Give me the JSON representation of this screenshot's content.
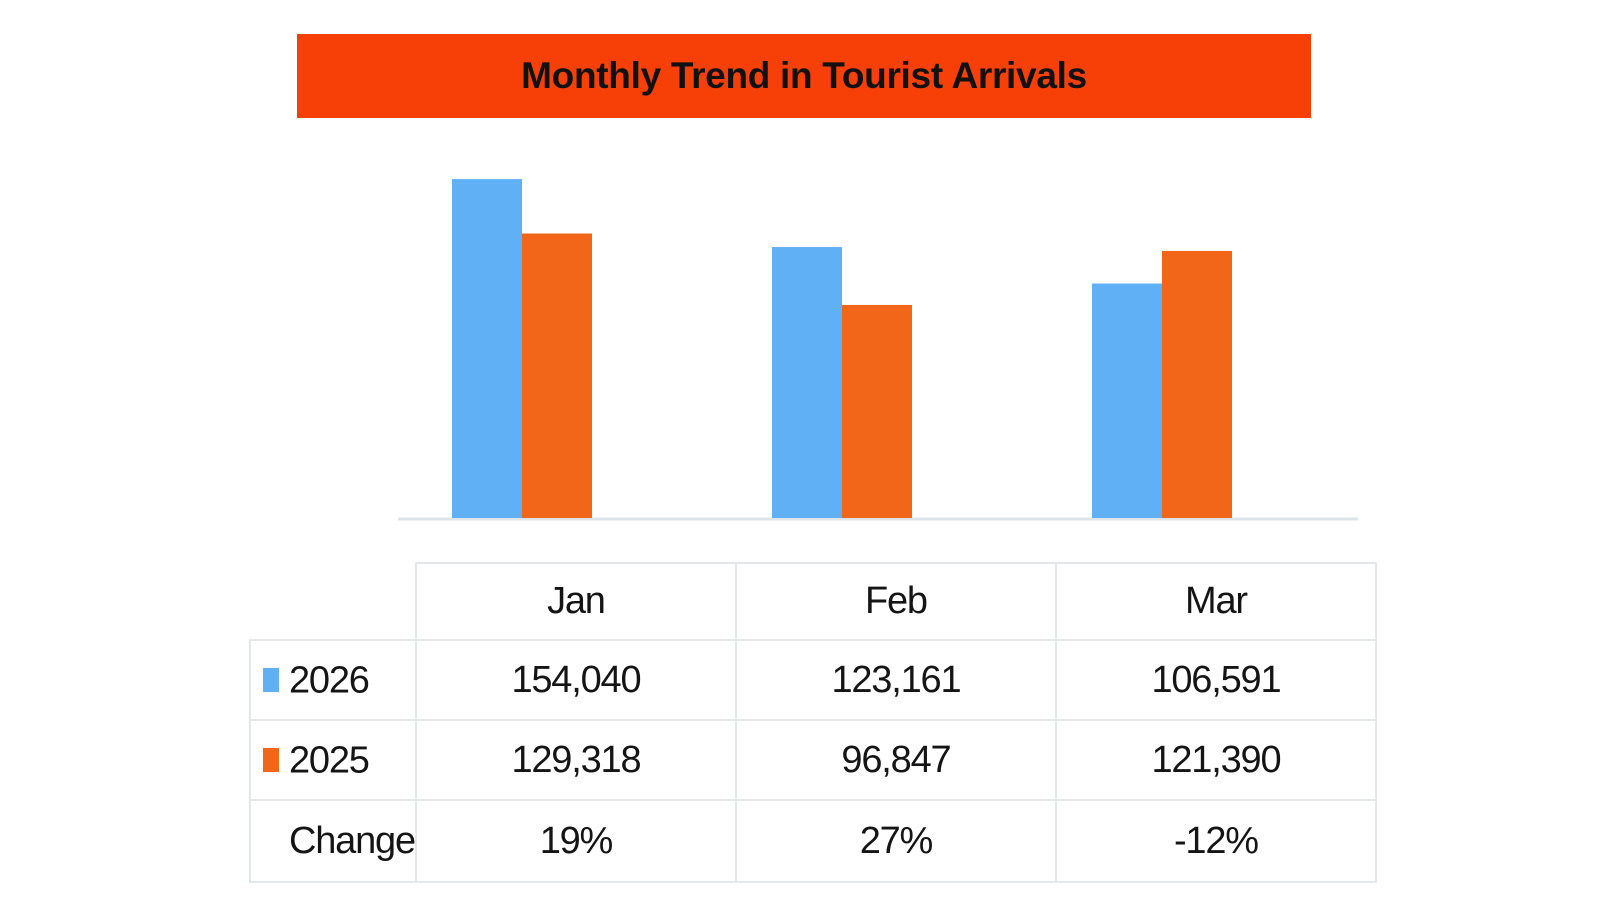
{
  "title": "Monthly Trend in Tourist Arrivals",
  "colors": {
    "banner": "#f64007",
    "series_2026": "#5fb0f5",
    "series_2025": "#f2661a",
    "axis": "#dfe4e8"
  },
  "chart_data": {
    "type": "bar",
    "title": "Monthly Trend in Tourist Arrivals",
    "categories": [
      "Jan",
      "Feb",
      "Mar"
    ],
    "series": [
      {
        "name": "2026",
        "values": [
          154040,
          123161,
          106591
        ]
      },
      {
        "name": "2025",
        "values": [
          129318,
          96847,
          121390
        ]
      }
    ],
    "ylim": [
      0,
      160000
    ],
    "grid": false,
    "legend": "table-row-swatches"
  },
  "table": {
    "headers": [
      "Jan",
      "Feb",
      "Mar"
    ],
    "rows": [
      {
        "label": "2026",
        "swatch": "series_2026",
        "cells": [
          "154,040",
          "123,161",
          "106,591"
        ]
      },
      {
        "label": "2025",
        "swatch": "series_2025",
        "cells": [
          "129,318",
          "96,847",
          "121,390"
        ]
      },
      {
        "label": "Change",
        "cells": [
          "19%",
          "27%",
          "-12%"
        ]
      }
    ]
  }
}
